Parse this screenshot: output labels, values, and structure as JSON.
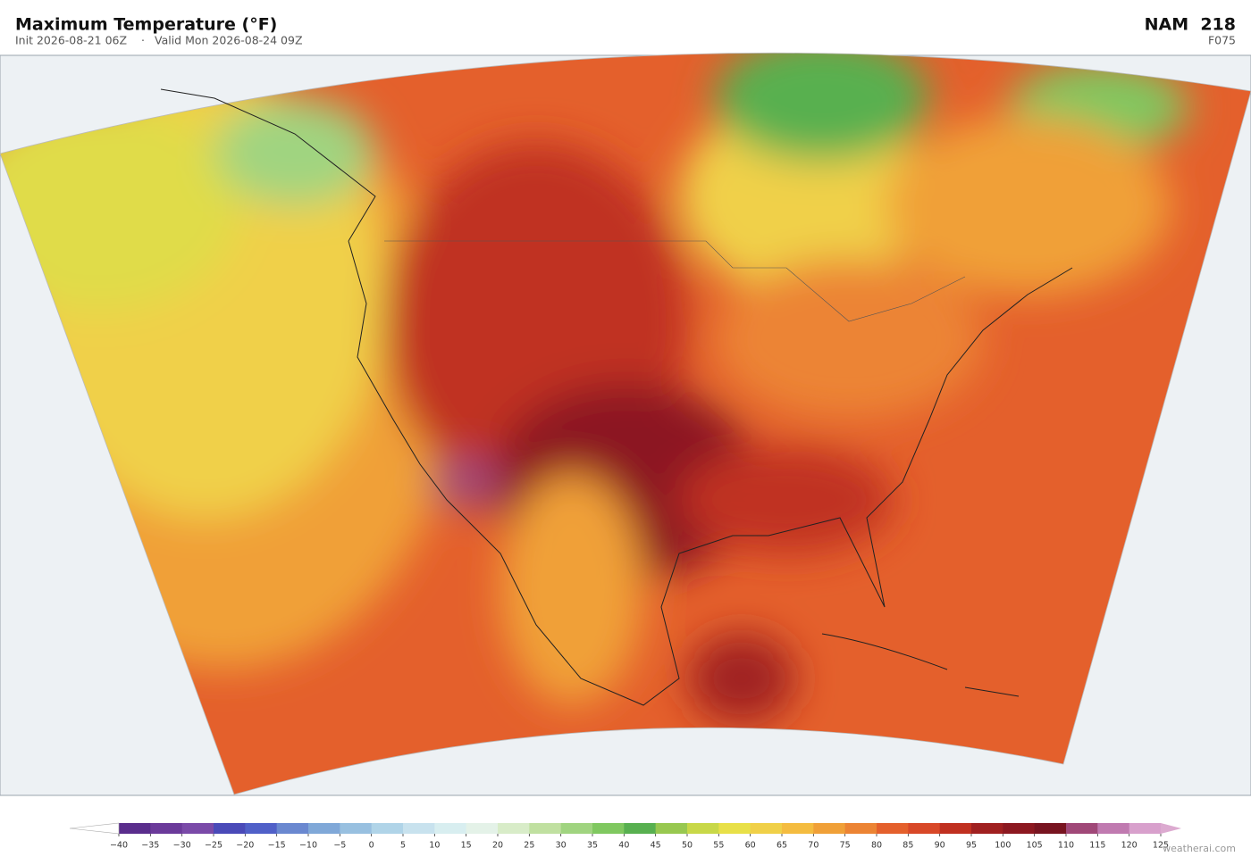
{
  "header": {
    "title": "Maximum Temperature  (°F)",
    "init": "Init 2026-08-21 06Z",
    "separator": "·",
    "valid": "Valid Mon 2026-08-24 09Z",
    "model": "NAM  218",
    "forecast_hour": "F075"
  },
  "colorbar": {
    "ticks": [
      {
        "value": -40,
        "label": "−40"
      },
      {
        "value": -35,
        "label": "−35"
      },
      {
        "value": -30,
        "label": "−30"
      },
      {
        "value": -25,
        "label": "−25"
      },
      {
        "value": -20,
        "label": "−20"
      },
      {
        "value": -15,
        "label": "−15"
      },
      {
        "value": -10,
        "label": "−10"
      },
      {
        "value": -5,
        "label": "−5"
      },
      0,
      5,
      10,
      15,
      20,
      25,
      30,
      35,
      40,
      45,
      50,
      55,
      60,
      65,
      70,
      75,
      80,
      85,
      90,
      95,
      100,
      105,
      110,
      115,
      120,
      125
    ],
    "colors": [
      "#5a2d8c",
      "#6b3a9a",
      "#7a4aa8",
      "#4a4ab8",
      "#5060c8",
      "#6a88d0",
      "#80a8d8",
      "#98c0e0",
      "#b0d4e8",
      "#c8e2ee",
      "#d8eef0",
      "#e4f2e8",
      "#d8ecc8",
      "#c0e0a0",
      "#a0d480",
      "#80c860",
      "#58b050",
      "#98c850",
      "#c8d848",
      "#e8e048",
      "#f0d048",
      "#f4bc40",
      "#f0a038",
      "#ec8434",
      "#e4602c",
      "#d84828",
      "#c03020",
      "#a02020",
      "#8c1820",
      "#781420",
      "#a04878",
      "#c07ab0",
      "#d8a0cc"
    ],
    "under_color": "#ffffff",
    "over_color": "#dcaad0"
  },
  "watermark": "weatherai.com"
}
